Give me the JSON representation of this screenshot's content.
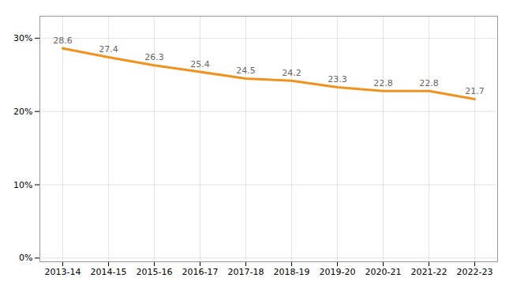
{
  "chart_data": {
    "type": "line",
    "categories": [
      "2013-14",
      "2014-15",
      "2015-16",
      "2016-17",
      "2017-18",
      "2018-19",
      "2019-20",
      "2020-21",
      "2021-22",
      "2022-23"
    ],
    "values": [
      28.6,
      27.4,
      26.3,
      25.4,
      24.5,
      24.2,
      23.3,
      22.8,
      22.8,
      21.7
    ],
    "color": "#F0921E",
    "ylim": [
      -0.5,
      33
    ],
    "yticks": [
      {
        "value": 0,
        "label": "0%"
      },
      {
        "value": 10,
        "label": "10%"
      },
      {
        "value": 20,
        "label": "20%"
      },
      {
        "value": 30,
        "label": "30%"
      }
    ],
    "grid": true,
    "data_labels": true
  }
}
